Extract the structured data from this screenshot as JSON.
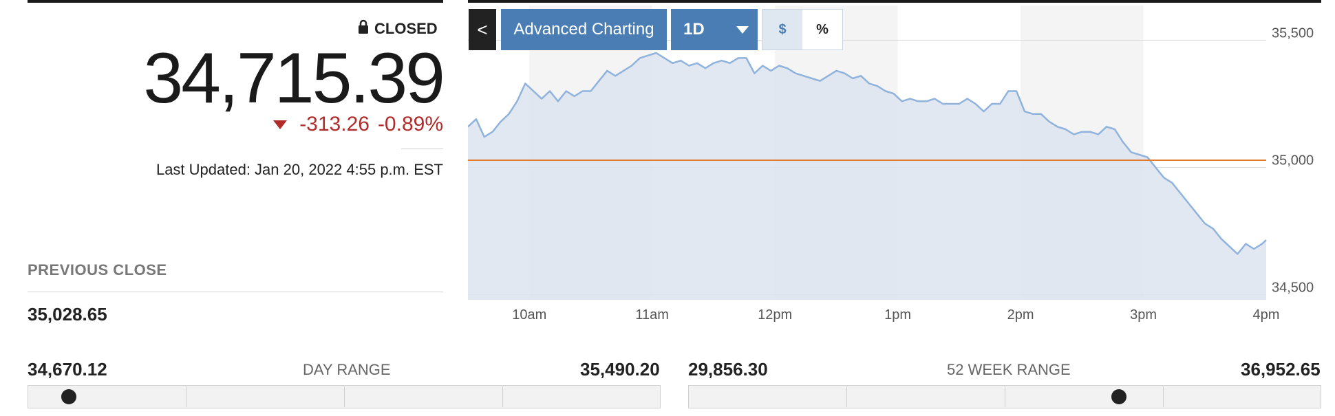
{
  "quote": {
    "status": "CLOSED",
    "price": "34,715.39",
    "change": "-313.26",
    "change_pct": "-0.89%",
    "last_updated": "Last Updated: Jan 20, 2022 4:55 p.m. EST",
    "previous_close_label": "PREVIOUS CLOSE",
    "previous_close": "35,028.65",
    "down_color": "#b22b2b"
  },
  "toolbar": {
    "back_label": "<",
    "advanced_label": "Advanced Charting",
    "range_label": "1D",
    "dollar_label": "$",
    "percent_label": "%",
    "active_mode": "$",
    "accent": "#4a7db4"
  },
  "day_range": {
    "label": "DAY RANGE",
    "low": "34,670.12",
    "high": "35,490.20",
    "position_fraction": 0.065
  },
  "week52_range": {
    "label": "52 WEEK RANGE",
    "low": "29,856.30",
    "high": "36,952.65",
    "position_fraction": 0.68
  },
  "icons": {
    "lock": "lock-icon",
    "down": "triangle-down-icon",
    "back": "chevron-left-icon",
    "dropdown": "caret-down-icon"
  },
  "chart_data": {
    "type": "area",
    "x_ticks": [
      "10am",
      "11am",
      "12pm",
      "1pm",
      "2pm",
      "3pm",
      "4pm"
    ],
    "y_ticks": [
      "35,500",
      "35,000",
      "34,500"
    ],
    "ylim": [
      34480,
      35550
    ],
    "xlim_minutes": [
      0,
      390
    ],
    "reference_line": {
      "value": 35028.65,
      "color": "#e07b2e"
    },
    "line_color": "#8fb3dd",
    "fill_color": "#dde4ee",
    "series": [
      {
        "x_minutes": [
          0,
          4,
          8,
          12,
          16,
          20,
          24,
          28,
          32,
          36,
          40,
          44,
          48,
          52,
          56,
          60,
          64,
          68,
          72,
          76,
          80,
          84,
          88,
          92,
          96,
          100,
          104,
          108,
          112,
          116,
          120,
          124,
          128,
          132,
          136,
          140,
          144,
          148,
          152,
          156,
          160,
          164,
          168,
          172,
          176,
          180,
          184,
          188,
          192,
          196,
          200,
          204,
          208,
          212,
          216,
          220,
          224,
          228,
          232,
          236,
          240,
          244,
          248,
          252,
          256,
          260,
          264,
          268,
          272,
          276,
          280,
          284,
          288,
          292,
          296,
          300,
          304,
          308,
          312,
          316,
          320,
          324,
          328,
          332,
          336,
          340,
          344,
          348,
          352,
          356,
          360,
          364,
          368,
          372,
          376,
          380,
          384,
          388,
          390
        ],
        "values": [
          35160,
          35190,
          35120,
          35140,
          35180,
          35210,
          35260,
          35330,
          35300,
          35270,
          35300,
          35260,
          35300,
          35280,
          35300,
          35300,
          35340,
          35380,
          35360,
          35380,
          35400,
          35430,
          35440,
          35450,
          35430,
          35410,
          35420,
          35400,
          35410,
          35390,
          35410,
          35420,
          35410,
          35430,
          35430,
          35370,
          35400,
          35380,
          35400,
          35390,
          35370,
          35360,
          35350,
          35340,
          35360,
          35380,
          35370,
          35350,
          35360,
          35330,
          35320,
          35300,
          35290,
          35260,
          35270,
          35260,
          35260,
          35270,
          35250,
          35250,
          35250,
          35270,
          35250,
          35220,
          35250,
          35250,
          35300,
          35300,
          35220,
          35210,
          35210,
          35180,
          35160,
          35150,
          35130,
          35140,
          35140,
          35130,
          35160,
          35150,
          35100,
          35060,
          35050,
          35040,
          35000,
          34960,
          34940,
          34900,
          34860,
          34820,
          34780,
          34760,
          34720,
          34690,
          34660,
          34700,
          34680,
          34700,
          34715
        ]
      }
    ]
  }
}
